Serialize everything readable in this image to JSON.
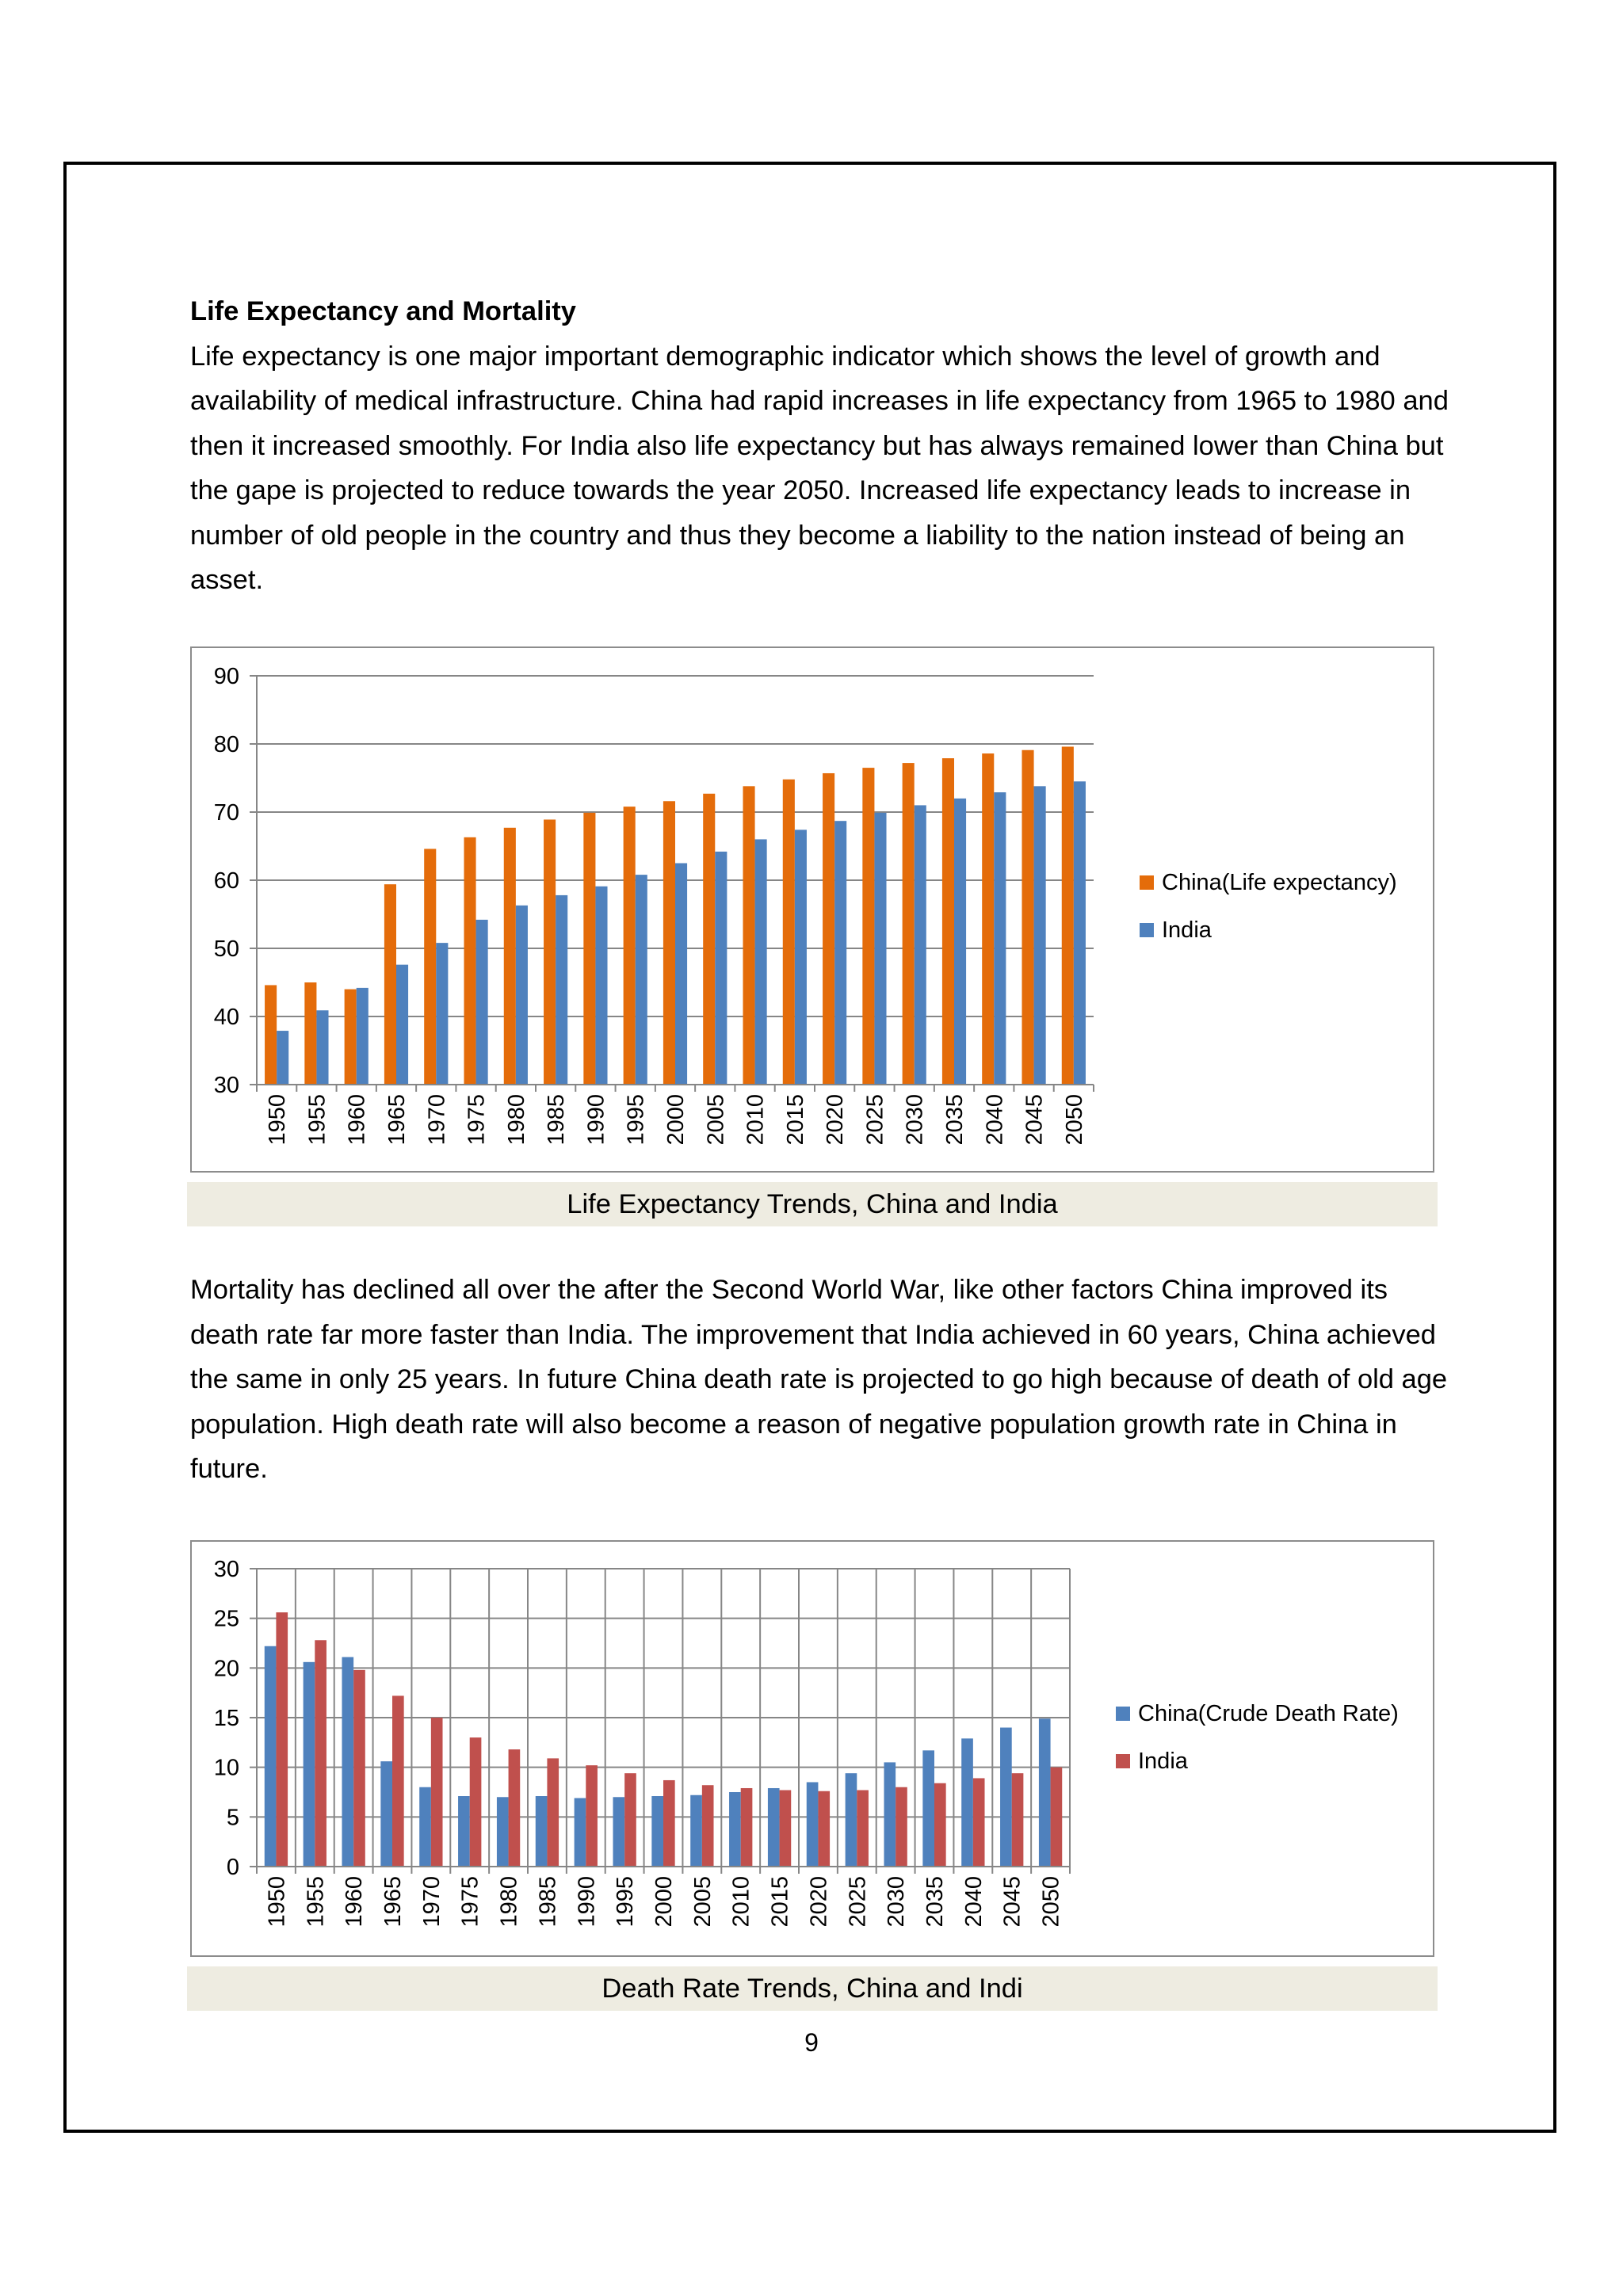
{
  "section": {
    "heading": "Life Expectancy and Mortality",
    "paragraph1": "Life expectancy is one major important demographic indicator which shows the level of growth and availability of medical infrastructure. China had rapid increases in life expectancy from 1965 to 1980 and then it increased smoothly. For India also life expectancy but has always remained lower than China but the gape is projected to reduce towards the year 2050. Increased life expectancy leads to increase in number of old people in the country and thus they become a liability to the nation instead of being an asset.",
    "paragraph2": "Mortality has declined all over the after the Second World War, like other factors China improved its death rate far more faster than India. The improvement that India achieved in 60 years, China achieved the same in only 25 years. In future China death rate is projected to go high because of death of old age population. High death rate will also become a reason of negative population growth rate in China in future."
  },
  "captions": {
    "life_expectancy": "Life Expectancy Trends, China and India",
    "death_rate": "Death Rate Trends, China and Indi"
  },
  "page_number": "9",
  "chart_data": [
    {
      "type": "bar",
      "categories": [
        "1950",
        "1955",
        "1960",
        "1965",
        "1970",
        "1975",
        "1980",
        "1985",
        "1990",
        "1995",
        "2000",
        "2005",
        "2010",
        "2015",
        "2020",
        "2025",
        "2030",
        "2035",
        "2040",
        "2045",
        "2050"
      ],
      "series": [
        {
          "name": "China(Life expectancy)",
          "color": "#e46c0a",
          "values": [
            44.6,
            45.0,
            44.0,
            59.4,
            64.6,
            66.3,
            67.7,
            68.9,
            69.9,
            70.8,
            71.6,
            72.7,
            73.8,
            74.8,
            75.7,
            76.5,
            77.2,
            77.9,
            78.6,
            79.1,
            79.6
          ]
        },
        {
          "name": "India",
          "color": "#4f81bd",
          "values": [
            37.9,
            40.9,
            44.2,
            47.6,
            50.8,
            54.2,
            56.3,
            57.8,
            59.1,
            60.8,
            62.5,
            64.2,
            66.0,
            67.4,
            68.7,
            69.9,
            71.0,
            72.0,
            72.9,
            73.8,
            74.5
          ]
        }
      ],
      "ylim": [
        30,
        90
      ],
      "yticks": [
        30,
        40,
        50,
        60,
        70,
        80,
        90
      ],
      "grid": "horizontal",
      "legend": "right"
    },
    {
      "type": "bar",
      "categories": [
        "1950",
        "1955",
        "1960",
        "1965",
        "1970",
        "1975",
        "1980",
        "1985",
        "1990",
        "1995",
        "2000",
        "2005",
        "2010",
        "2015",
        "2020",
        "2025",
        "2030",
        "2035",
        "2040",
        "2045",
        "2050"
      ],
      "series": [
        {
          "name": "China(Crude Death Rate)",
          "color": "#4f81bd",
          "values": [
            22.2,
            20.6,
            21.1,
            10.6,
            8.0,
            7.1,
            7.0,
            7.1,
            6.9,
            7.0,
            7.1,
            7.2,
            7.5,
            7.9,
            8.5,
            9.4,
            10.5,
            11.7,
            12.9,
            14.0,
            14.9
          ]
        },
        {
          "name": "India",
          "color": "#c0504d",
          "values": [
            25.6,
            22.8,
            19.8,
            17.2,
            15.0,
            13.0,
            11.8,
            10.9,
            10.2,
            9.4,
            8.7,
            8.2,
            7.9,
            7.7,
            7.6,
            7.7,
            8.0,
            8.4,
            8.9,
            9.4,
            10.0
          ]
        }
      ],
      "ylim": [
        0,
        30
      ],
      "yticks": [
        0,
        5,
        10,
        15,
        20,
        25,
        30
      ],
      "grid": "both",
      "legend": "right"
    }
  ]
}
